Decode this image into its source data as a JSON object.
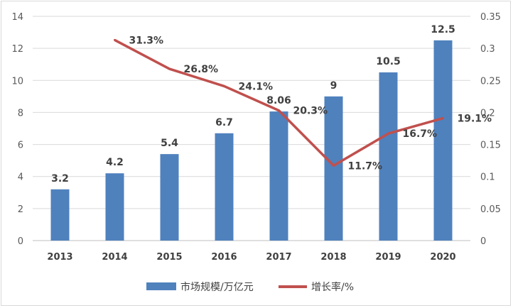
{
  "chart_data": {
    "type": "bar+line",
    "categories": [
      "2013",
      "2014",
      "2015",
      "2016",
      "2017",
      "2018",
      "2019",
      "2020"
    ],
    "series": [
      {
        "name": "市场规模/万亿元",
        "type": "bar",
        "axis": "left",
        "values": [
          3.2,
          4.2,
          5.4,
          6.7,
          8.06,
          9,
          10.5,
          12.5
        ],
        "labels": [
          "3.2",
          "4.2",
          "5.4",
          "6.7",
          "8.06",
          "9",
          "10.5",
          "12.5"
        ],
        "color": "#4f81bd"
      },
      {
        "name": "增长率/%",
        "type": "line",
        "axis": "right",
        "values": [
          null,
          0.313,
          0.268,
          0.241,
          0.203,
          0.117,
          0.167,
          0.191
        ],
        "labels": [
          "",
          "31.3%",
          "26.8%",
          "24.1%",
          "20.3%",
          "11.7%",
          "16.7%",
          "19.1%"
        ],
        "color": "#c0504d"
      }
    ],
    "y_left": {
      "min": 0,
      "max": 14,
      "ticks": [
        "0",
        "2",
        "4",
        "6",
        "8",
        "10",
        "12",
        "14"
      ]
    },
    "y_right": {
      "min": 0,
      "max": 0.35,
      "ticks": [
        "0",
        "0.05",
        "0.1",
        "0.15",
        "0.2",
        "0.25",
        "0.3",
        "0.35"
      ]
    },
    "grid": true,
    "legend": "bottom"
  }
}
